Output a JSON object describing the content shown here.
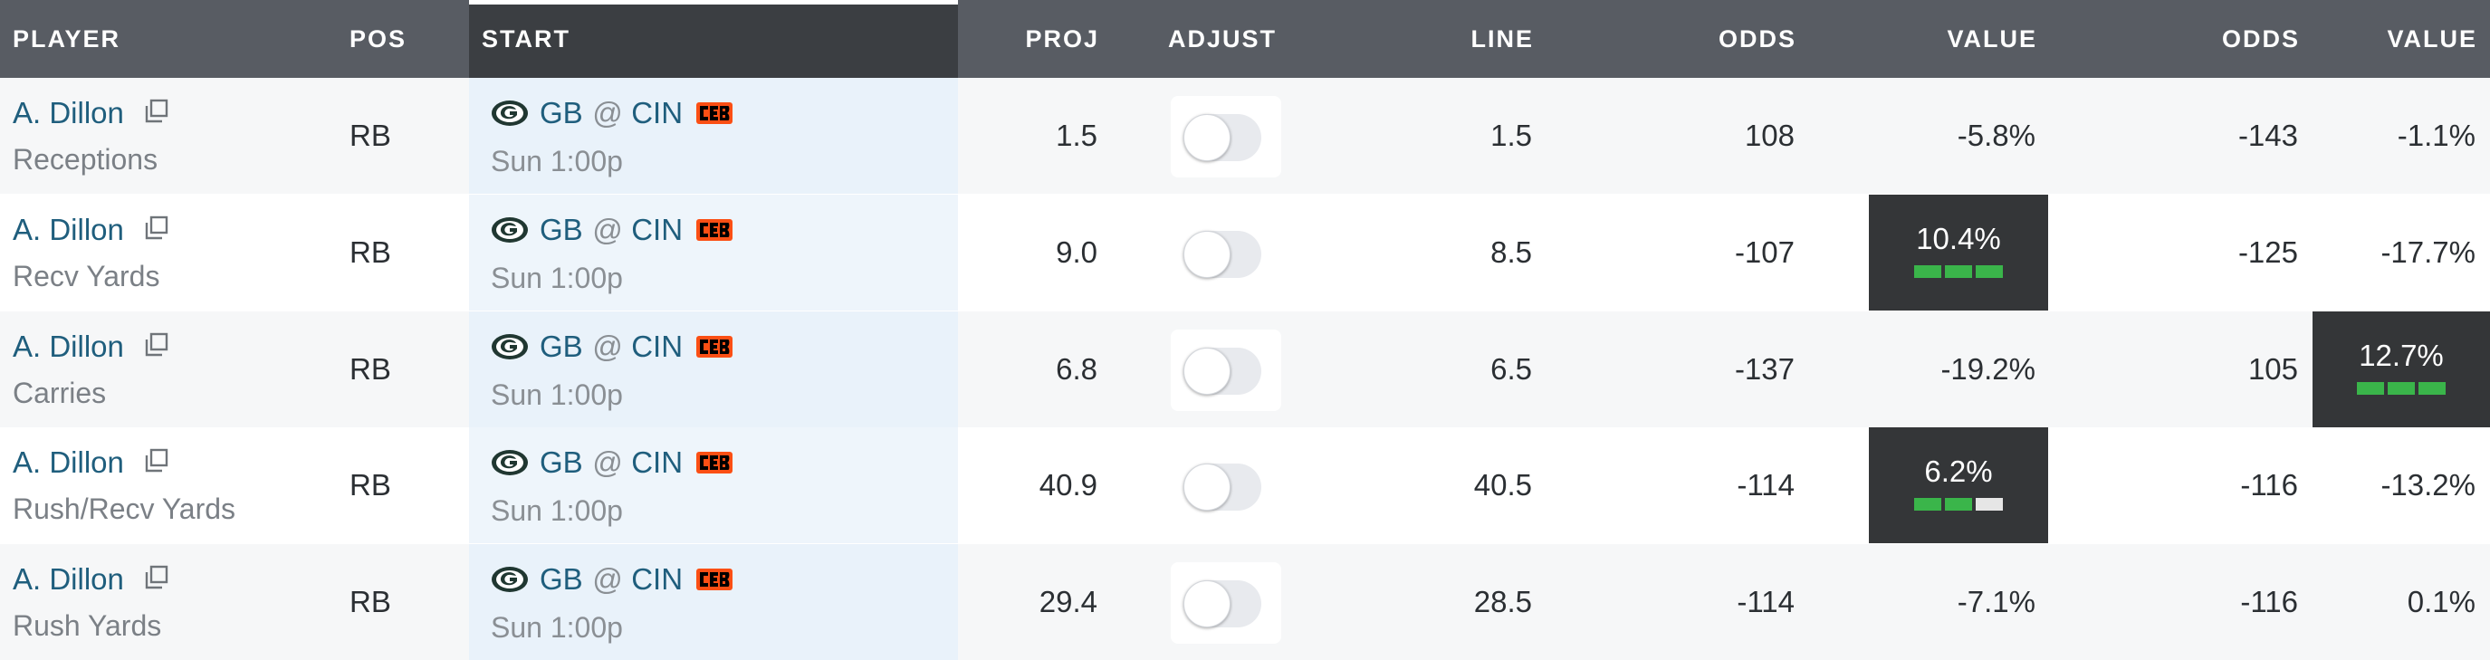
{
  "colors": {
    "header_bg": "#585c63",
    "start_header_bg": "#3b3e42",
    "link": "#1f5e7d",
    "value_box_bg": "#343638",
    "bar_on": "#3ab54a",
    "bar_off": "#e6e6e6"
  },
  "headers": {
    "player": "PLAYER",
    "pos": "POS",
    "start": "START",
    "proj": "PROJ",
    "adjust": "ADJUST",
    "line": "LINE",
    "odds1": "ODDS",
    "value1": "VALUE",
    "odds2": "ODDS",
    "value2": "VALUE"
  },
  "rows": [
    {
      "player": "A. Dillon",
      "stat": "Receptions",
      "pos": "RB",
      "home": "GB",
      "at": "@",
      "away": "CIN",
      "time": "Sun 1:00p",
      "proj": "1.5",
      "adjust_on": false,
      "line": "1.5",
      "odds1": "108",
      "value1": "-5.8%",
      "value1_bars": 0,
      "odds2": "-143",
      "value2": "-1.1%",
      "value2_bars": 0
    },
    {
      "player": "A. Dillon",
      "stat": "Recv Yards",
      "pos": "RB",
      "home": "GB",
      "at": "@",
      "away": "CIN",
      "time": "Sun 1:00p",
      "proj": "9.0",
      "adjust_on": false,
      "line": "8.5",
      "odds1": "-107",
      "value1": "10.4%",
      "value1_bars": 3,
      "odds2": "-125",
      "value2": "-17.7%",
      "value2_bars": 0
    },
    {
      "player": "A. Dillon",
      "stat": "Carries",
      "pos": "RB",
      "home": "GB",
      "at": "@",
      "away": "CIN",
      "time": "Sun 1:00p",
      "proj": "6.8",
      "adjust_on": false,
      "line": "6.5",
      "odds1": "-137",
      "value1": "-19.2%",
      "value1_bars": 0,
      "odds2": "105",
      "value2": "12.7%",
      "value2_bars": 3
    },
    {
      "player": "A. Dillon",
      "stat": "Rush/Recv Yards",
      "pos": "RB",
      "home": "GB",
      "at": "@",
      "away": "CIN",
      "time": "Sun 1:00p",
      "proj": "40.9",
      "adjust_on": false,
      "line": "40.5",
      "odds1": "-114",
      "value1": "6.2%",
      "value1_bars": 2,
      "odds2": "-116",
      "value2": "-13.2%",
      "value2_bars": 0
    },
    {
      "player": "A. Dillon",
      "stat": "Rush Yards",
      "pos": "RB",
      "home": "GB",
      "at": "@",
      "away": "CIN",
      "time": "Sun 1:00p",
      "proj": "29.4",
      "adjust_on": false,
      "line": "28.5",
      "odds1": "-114",
      "value1": "-7.1%",
      "value1_bars": 0,
      "odds2": "-116",
      "value2": "0.1%",
      "value2_bars": 0
    }
  ]
}
